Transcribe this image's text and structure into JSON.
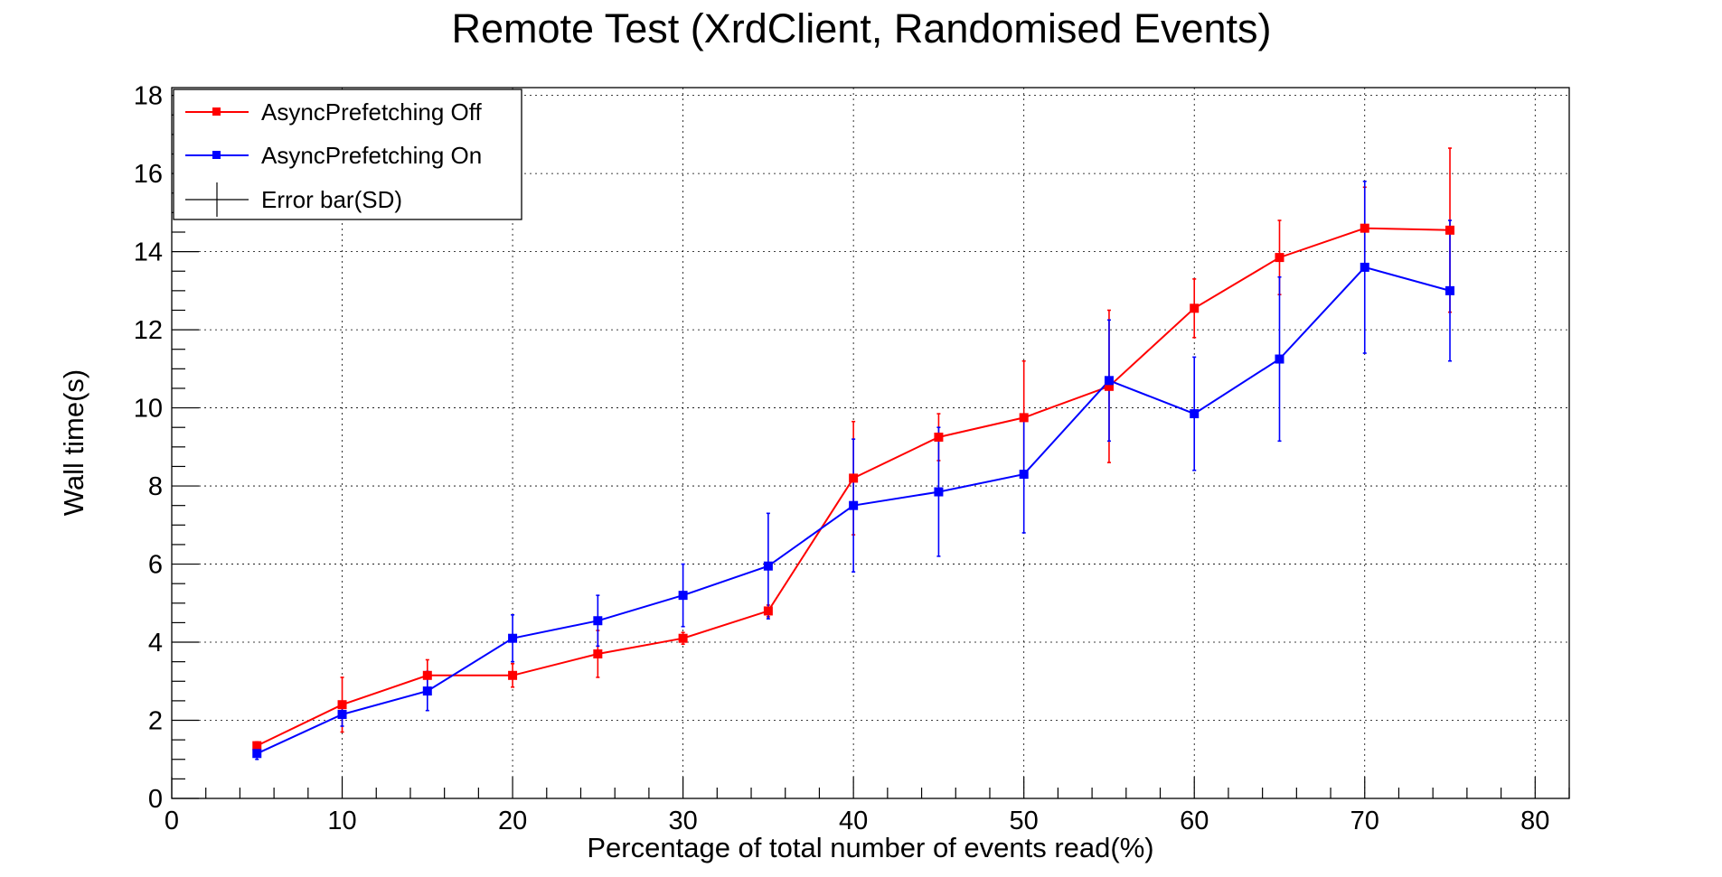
{
  "chart_data": {
    "type": "line",
    "title": "Remote Test (XrdClient, Randomised Events)",
    "xlabel": "Percentage of total number of events read(%)",
    "ylabel": "Wall time(s)",
    "xlim": [
      0,
      82
    ],
    "ylim": [
      0,
      18.2
    ],
    "xticks": [
      0,
      10,
      20,
      30,
      40,
      50,
      60,
      70,
      80
    ],
    "yticks": [
      0,
      2,
      4,
      6,
      8,
      10,
      12,
      14,
      16,
      18
    ],
    "grid": true,
    "legend_position": "top-left",
    "series": [
      {
        "name": "AsyncPrefetching Off",
        "color": "#ff0000",
        "marker": "square",
        "x": [
          5,
          10,
          15,
          20,
          25,
          30,
          35,
          40,
          45,
          50,
          55,
          60,
          65,
          70,
          75
        ],
        "y": [
          1.35,
          2.4,
          3.15,
          3.15,
          3.7,
          4.1,
          4.8,
          8.2,
          9.25,
          9.75,
          10.55,
          12.55,
          13.85,
          14.6,
          14.55
        ],
        "err": [
          0.1,
          0.7,
          0.4,
          0.3,
          0.6,
          0.15,
          0.15,
          1.45,
          0.6,
          1.45,
          1.95,
          0.75,
          0.95,
          1.05,
          2.1
        ]
      },
      {
        "name": "AsyncPrefetching On",
        "color": "#0000ff",
        "marker": "square",
        "x": [
          5,
          10,
          15,
          20,
          25,
          30,
          35,
          40,
          45,
          50,
          55,
          60,
          65,
          70,
          75
        ],
        "y": [
          1.15,
          2.15,
          2.75,
          4.1,
          4.55,
          5.2,
          5.95,
          7.5,
          7.85,
          8.3,
          10.7,
          9.85,
          11.25,
          13.6,
          13.0
        ],
        "err": [
          0.15,
          0.3,
          0.5,
          0.6,
          0.65,
          0.8,
          1.35,
          1.7,
          1.65,
          1.5,
          1.55,
          1.45,
          2.1,
          2.2,
          1.8
        ]
      }
    ],
    "legend": [
      {
        "label": "AsyncPrefetching Off",
        "color": "#ff0000",
        "symbol": "line-square"
      },
      {
        "label": "AsyncPrefetching On",
        "color": "#0000ff",
        "symbol": "line-square"
      },
      {
        "label": "Error bar(SD)",
        "color": "#000000",
        "symbol": "cross"
      }
    ]
  }
}
